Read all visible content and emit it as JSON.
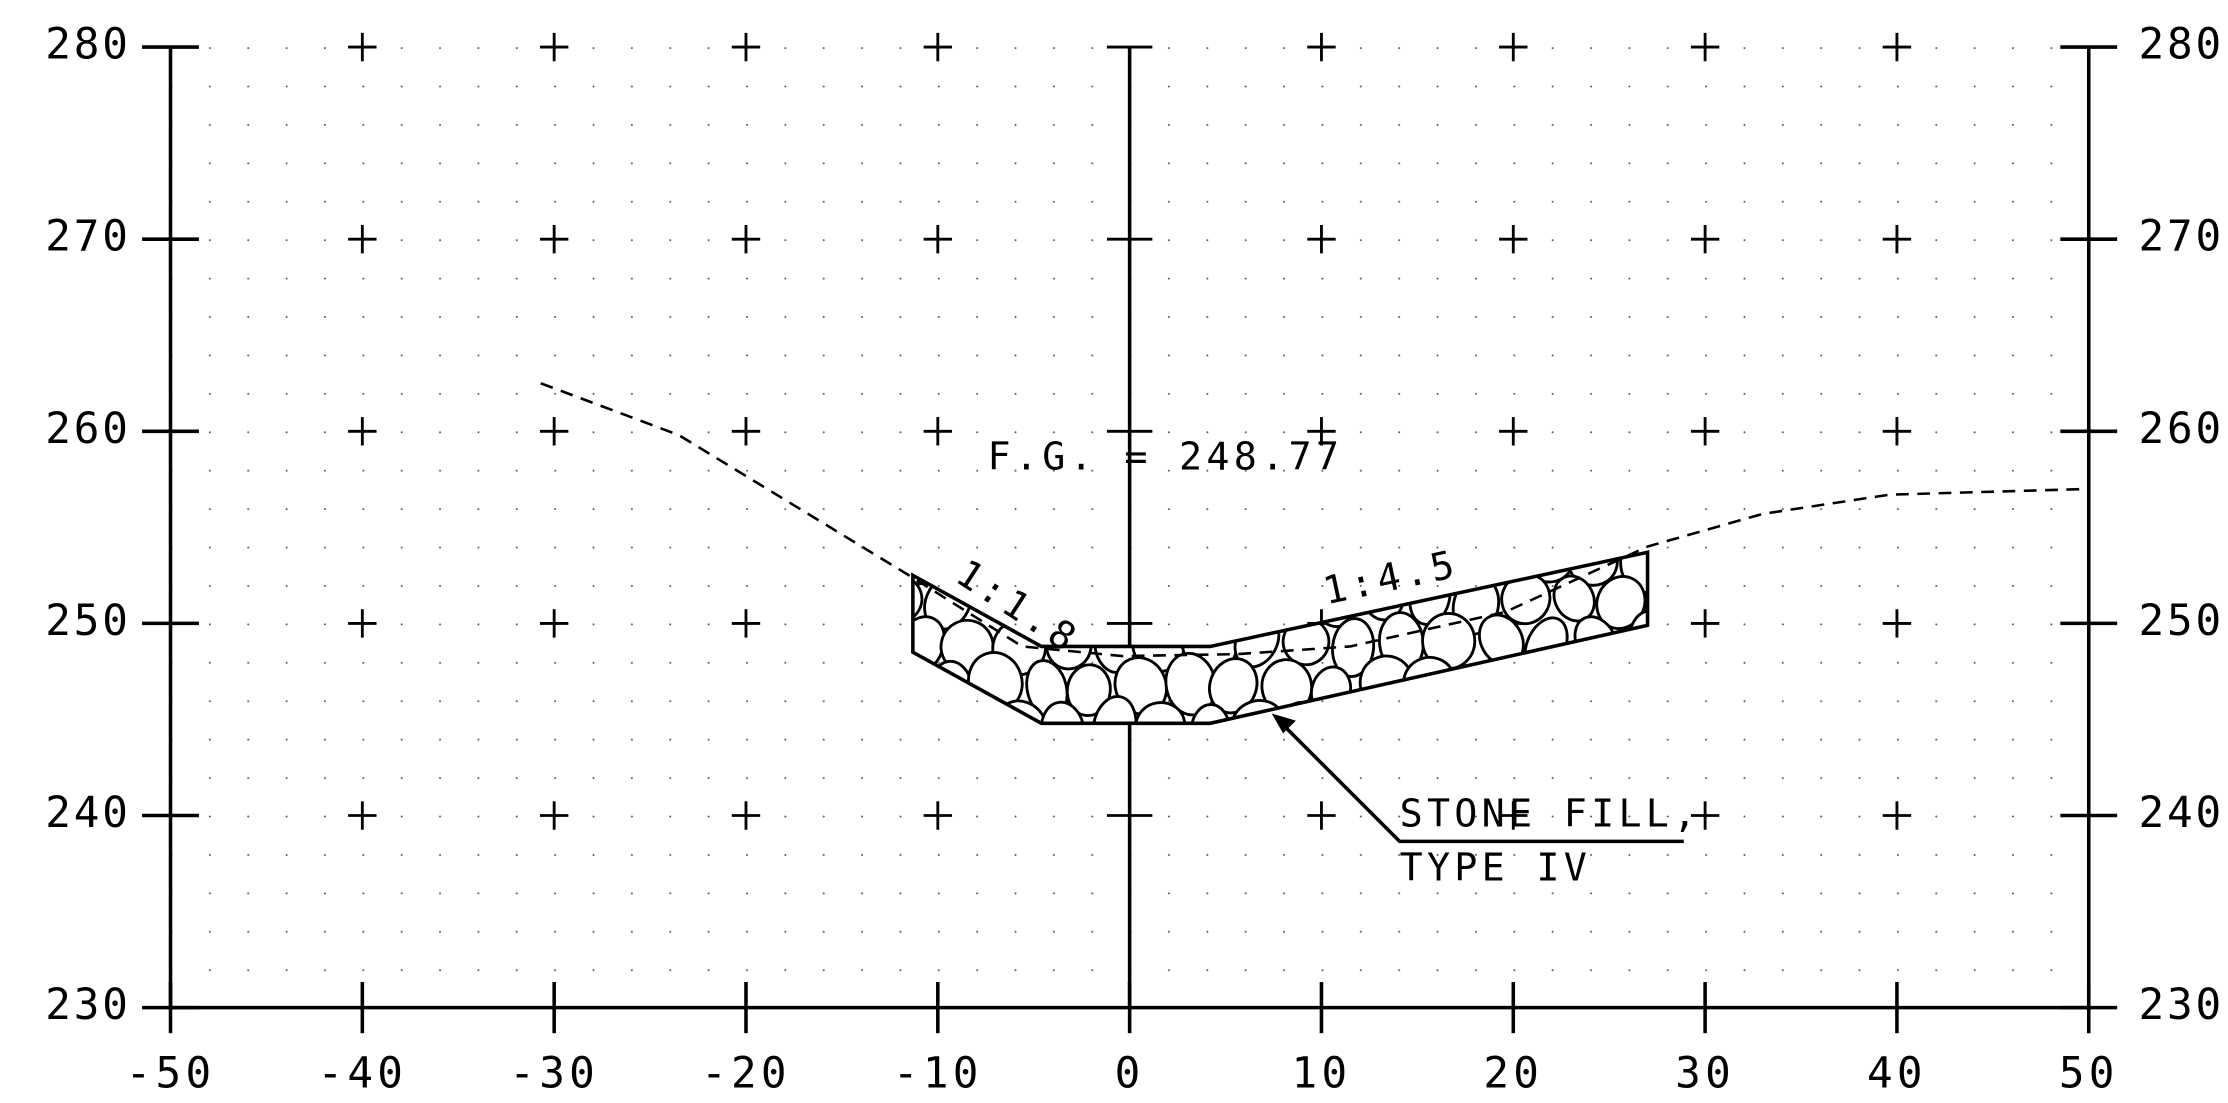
{
  "chart_data": {
    "type": "cross-section",
    "xlim": [
      -50,
      50
    ],
    "ylim": [
      230,
      280
    ],
    "xticks": [
      -50,
      -40,
      -30,
      -20,
      -10,
      0,
      10,
      20,
      30,
      40,
      50
    ],
    "yticks": [
      230,
      240,
      250,
      260,
      270,
      280
    ],
    "ground_line": {
      "x": [
        -30.7,
        -23.5,
        -11.5,
        -5.6,
        -0.4,
        5.6,
        11.5,
        19.6,
        27,
        33,
        39.6,
        50
      ],
      "y": [
        262.5,
        259.8,
        252.5,
        248.8,
        248.3,
        248.4,
        248.8,
        250.6,
        254,
        255.7,
        256.7,
        257
      ]
    },
    "stone_fill": {
      "x": [
        -11.3,
        -11.3,
        -4.6,
        4.2,
        27,
        27,
        4.2,
        -4.6
      ],
      "y": [
        252.5,
        248.5,
        244.8,
        244.8,
        249.9,
        253.7,
        248.8,
        248.8
      ]
    },
    "annotations": [
      "F.G. = 248.77",
      "1:1.8",
      "1:4.5",
      "STONE FILL,",
      "TYPE IV"
    ]
  }
}
